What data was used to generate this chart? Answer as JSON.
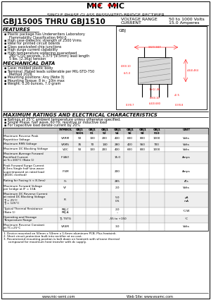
{
  "title_logo": "MIC MIC",
  "title_main": "SINGLE PHASE GLASS PASSIVATED BRIDGE RECTIFIER",
  "part_number": "GBJ15005 THRU GBJ1510",
  "voltage_range_label": "VOLTAGE RANGE",
  "voltage_range_value": "50 to 1000 Volts",
  "current_label": "CURRENT",
  "current_value": "15.0 Amperes",
  "features_title": "FEATURES",
  "features": [
    "Plastic package has Underwriters Laboratory\n  Flammability Classification 94V-0",
    "High case dielectric strength of 2500 Vrms",
    "Ideal for printed circuit boards",
    "Glass passivated chip junctions",
    "High surge current capability",
    "High temperature soldering guaranteed\n  260°C/10 seconds, 0.375\"(9.5mm) lead length\n  5 lbs. (2.3Kg) tension"
  ],
  "mechanical_title": "MECHANICAL DATA",
  "mechanical": [
    "Case: molded plastic body",
    "Terminal: Plated leads solderable per MIL-STD-750\n  Method 2026",
    "Mounting positions: Any (Note 3)",
    "Mounting Torque: 8 in - 10in max",
    "Weight: 0.26 ounces, 7.0 gram"
  ],
  "ratings_title": "MAXIMUM RATINGS AND ELECTRICAL CHARACTERISTICS",
  "ratings_notes": [
    "Ratings at 25°C ambient temperature unless otherwise specified.",
    "Single Phase, half wave, 60 Hz, resistive or inductive load",
    "For capacitive load derate current by 20%"
  ],
  "notes": [
    "1. Device mounted on 50mm x 50mm x 1.6mm aluminum PCB. Plus heatsink.",
    "2. Short circuit protection built into rectifier at no cost.",
    "3. Recommend mounting position is bolt down on heatsink with silicone thermal\n   compound for maximum heat transfer with dc supply."
  ],
  "website": "www.mic-semi.com",
  "website2": "Web Site: www.esamc.com",
  "bg_color": "#ffffff",
  "logo_color": "#cc0000"
}
